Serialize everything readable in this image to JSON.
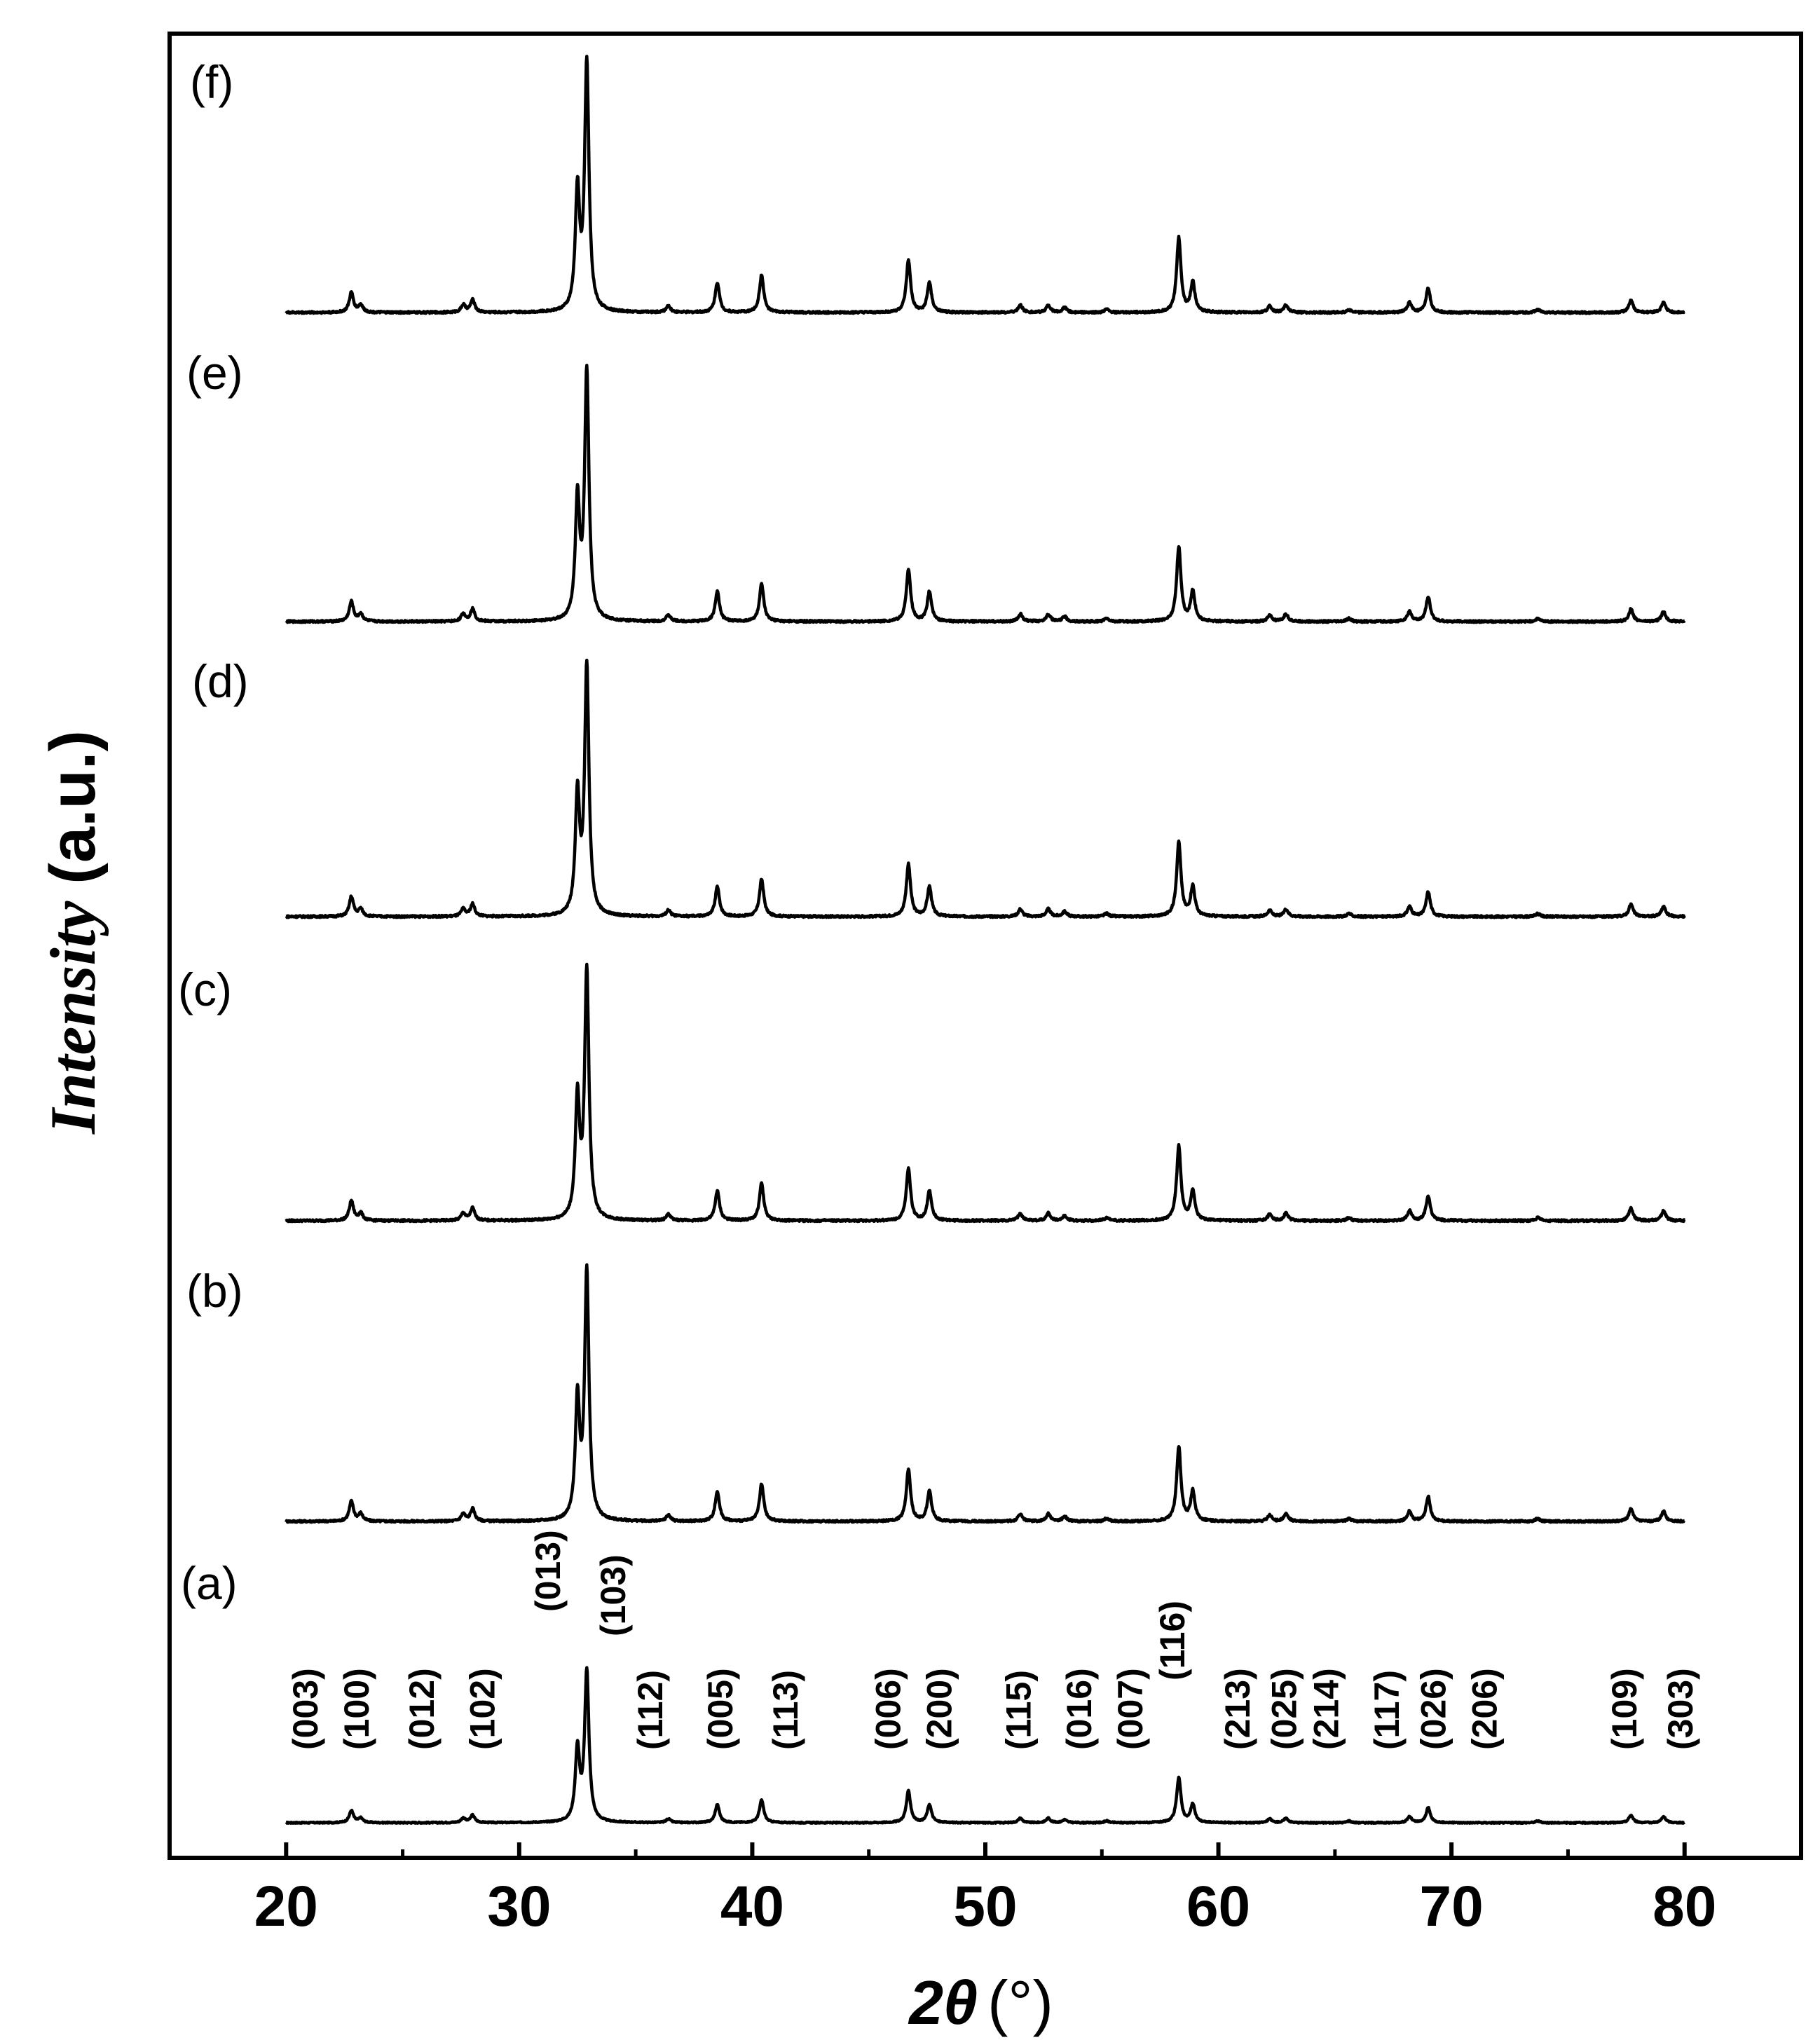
{
  "chart_data": {
    "type": "line",
    "title": "",
    "xlabel_symbol": "2θ",
    "xlabel_unit": "(°)",
    "ylabel_italic": "Intensity",
    "ylabel_unit": "(a.u.)",
    "xlim": [
      15,
      85
    ],
    "xticks": [
      20,
      30,
      40,
      50,
      60,
      70,
      80
    ],
    "grid": false,
    "series": [
      {
        "name": "(a)",
        "label": "(a)",
        "peak_scale": 0.55
      },
      {
        "name": "(b)",
        "label": "(b)",
        "peak_scale": 0.91
      },
      {
        "name": "(c)",
        "label": "(c)",
        "peak_scale": 0.91
      },
      {
        "name": "(d)",
        "label": "(d)",
        "peak_scale": 0.91
      },
      {
        "name": "(e)",
        "label": "(e)",
        "peak_scale": 0.91
      },
      {
        "name": "(f)",
        "label": "(f)",
        "peak_scale": 0.91
      }
    ],
    "peaks": [
      {
        "pos": 22.8,
        "h": 0.08
      },
      {
        "pos": 23.2,
        "h": 0.03
      },
      {
        "pos": 27.6,
        "h": 0.03
      },
      {
        "pos": 28.0,
        "h": 0.05
      },
      {
        "pos": 32.5,
        "h": 0.48
      },
      {
        "pos": 32.9,
        "h": 1.0
      },
      {
        "pos": 36.4,
        "h": 0.025
      },
      {
        "pos": 38.5,
        "h": 0.12
      },
      {
        "pos": 40.4,
        "h": 0.15
      },
      {
        "pos": 46.7,
        "h": 0.21
      },
      {
        "pos": 47.6,
        "h": 0.12
      },
      {
        "pos": 51.5,
        "h": 0.03
      },
      {
        "pos": 52.7,
        "h": 0.03
      },
      {
        "pos": 53.4,
        "h": 0.02
      },
      {
        "pos": 55.2,
        "h": 0.012
      },
      {
        "pos": 58.3,
        "h": 0.3
      },
      {
        "pos": 58.9,
        "h": 0.12
      },
      {
        "pos": 62.2,
        "h": 0.025
      },
      {
        "pos": 62.9,
        "h": 0.03
      },
      {
        "pos": 65.6,
        "h": 0.012
      },
      {
        "pos": 68.2,
        "h": 0.04
      },
      {
        "pos": 69.0,
        "h": 0.1
      },
      {
        "pos": 73.7,
        "h": 0.012
      },
      {
        "pos": 77.7,
        "h": 0.05
      },
      {
        "pos": 79.1,
        "h": 0.04
      }
    ],
    "annotations": [
      {
        "text": "(003)",
        "x": 20.8
      },
      {
        "text": "(100)",
        "x": 23.0
      },
      {
        "text": "(012)",
        "x": 25.8
      },
      {
        "text": "(102)",
        "x": 28.4
      },
      {
        "text": "(013)",
        "x": 31.2
      },
      {
        "text": "(103)",
        "x": 34.0
      },
      {
        "text": "(112)",
        "x": 35.6
      },
      {
        "text": "(005)",
        "x": 38.6
      },
      {
        "text": "(113)",
        "x": 41.4
      },
      {
        "text": "(006)",
        "x": 45.8
      },
      {
        "text": "(200)",
        "x": 48.0
      },
      {
        "text": "(115)",
        "x": 51.4
      },
      {
        "text": "(016)",
        "x": 54.0
      },
      {
        "text": "(007)",
        "x": 56.2
      },
      {
        "text": "(116)",
        "x": 58.0
      },
      {
        "text": "(213)",
        "x": 60.8
      },
      {
        "text": "(025)",
        "x": 62.8
      },
      {
        "text": "(214)",
        "x": 64.6
      },
      {
        "text": "(117)",
        "x": 67.2
      },
      {
        "text": "(026)",
        "x": 69.2
      },
      {
        "text": "(206)",
        "x": 71.4
      },
      {
        "text": "(109)",
        "x": 77.4
      },
      {
        "text": "(303)",
        "x": 79.8
      }
    ]
  }
}
